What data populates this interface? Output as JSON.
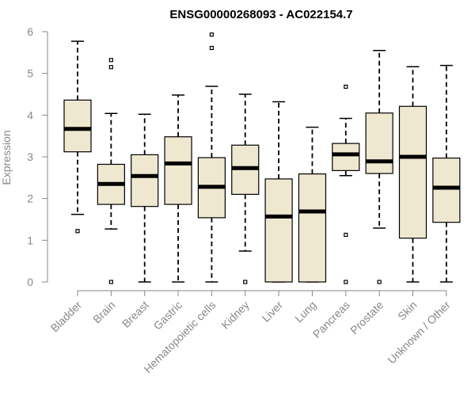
{
  "chart_data": {
    "type": "boxplot",
    "title": "ENSG00000268093 - AC022154.7",
    "xlabel": "",
    "ylabel": "Expression",
    "ylim": [
      0,
      6
    ],
    "yticks": [
      "0",
      "1",
      "2",
      "3",
      "4",
      "5",
      "6"
    ],
    "box_color": "#EFE8D0",
    "categories": [
      "Bladder",
      "Brain",
      "Breast",
      "Gastric",
      "Hematopoietic cells",
      "Kidney",
      "Liver",
      "Lung",
      "Pancreas",
      "Prostate",
      "Skin",
      "Unknown / Other"
    ],
    "series": [
      {
        "name": "Bladder",
        "min": 1.62,
        "q1": 3.12,
        "median": 3.67,
        "q3": 4.36,
        "max": 5.77,
        "outliers": [
          1.22
        ]
      },
      {
        "name": "Brain",
        "min": 1.27,
        "q1": 1.86,
        "median": 2.35,
        "q3": 2.82,
        "max": 4.04,
        "outliers": [
          5.32,
          5.15,
          0.0
        ]
      },
      {
        "name": "Breast",
        "min": 0.0,
        "q1": 1.81,
        "median": 2.54,
        "q3": 3.05,
        "max": 4.02,
        "outliers": []
      },
      {
        "name": "Gastric",
        "min": 0.0,
        "q1": 1.86,
        "median": 2.84,
        "q3": 3.48,
        "max": 4.48,
        "outliers": []
      },
      {
        "name": "Hematopoietic cells",
        "min": 0.0,
        "q1": 1.54,
        "median": 2.28,
        "q3": 2.98,
        "max": 4.69,
        "outliers": [
          5.93,
          5.61
        ]
      },
      {
        "name": "Kidney",
        "min": 0.74,
        "q1": 2.1,
        "median": 2.73,
        "q3": 3.28,
        "max": 4.5,
        "outliers": [
          0.0
        ]
      },
      {
        "name": "Liver",
        "min": 0.0,
        "q1": 0.0,
        "median": 1.57,
        "q3": 2.47,
        "max": 4.32,
        "outliers": []
      },
      {
        "name": "Lung",
        "min": 0.0,
        "q1": 0.0,
        "median": 1.69,
        "q3": 2.59,
        "max": 3.71,
        "outliers": []
      },
      {
        "name": "Pancreas",
        "min": 2.55,
        "q1": 2.67,
        "median": 3.06,
        "q3": 3.32,
        "max": 3.92,
        "outliers": [
          4.68,
          1.13,
          0.0
        ]
      },
      {
        "name": "Prostate",
        "min": 1.29,
        "q1": 2.6,
        "median": 2.89,
        "q3": 4.05,
        "max": 5.55,
        "outliers": [
          0.0
        ]
      },
      {
        "name": "Skin",
        "min": 0.0,
        "q1": 1.05,
        "median": 3.0,
        "q3": 4.21,
        "max": 5.16,
        "outliers": []
      },
      {
        "name": "Unknown / Other",
        "min": 0.0,
        "q1": 1.43,
        "median": 2.26,
        "q3": 2.97,
        "max": 5.19,
        "outliers": []
      }
    ]
  }
}
